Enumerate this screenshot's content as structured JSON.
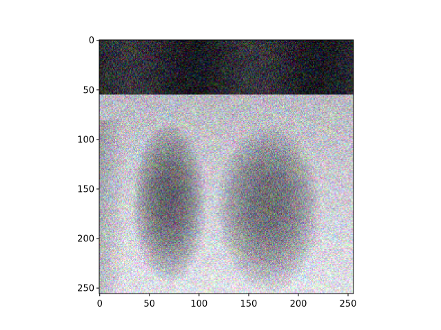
{
  "chart_data": {
    "type": "heatmap",
    "subtype": "image",
    "description_free": true,
    "x": {
      "lim": [
        0,
        255
      ],
      "ticks": [
        0,
        50,
        100,
        150,
        200,
        250
      ],
      "tick_labels": [
        "0",
        "50",
        "100",
        "150",
        "200",
        "250"
      ]
    },
    "y": {
      "lim": [
        0,
        255
      ],
      "inverted": true,
      "ticks": [
        0,
        50,
        100,
        150,
        200,
        250
      ],
      "tick_labels": [
        "0",
        "50",
        "100",
        "150",
        "200",
        "250"
      ]
    },
    "image": {
      "width": 256,
      "height": 256,
      "dark_band_rows": [
        0,
        55
      ],
      "regions": [
        {
          "cx": 70,
          "cy": 165,
          "rx": 32,
          "ry": 70,
          "darkness": 0.55
        },
        {
          "cx": 170,
          "cy": 170,
          "rx": 45,
          "ry": 72,
          "darkness": 0.5
        }
      ],
      "noise": "color"
    },
    "title": "",
    "xlabel": "",
    "ylabel": "",
    "grid": false
  },
  "colors": {
    "background": "#ffffff",
    "axis": "#000000",
    "band": "#1a1a22",
    "tissue": "#e6e6ea",
    "shadow": "#3a3a40"
  }
}
